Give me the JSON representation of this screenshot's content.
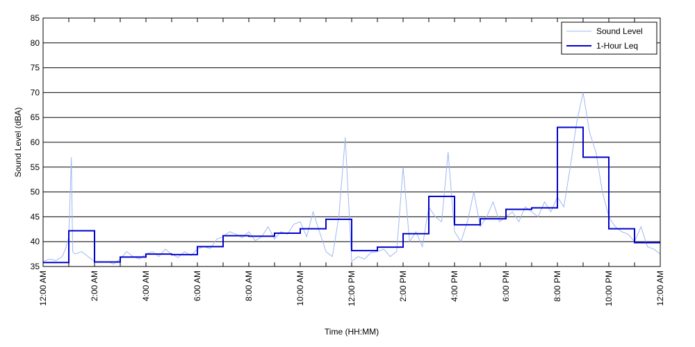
{
  "chart_data": {
    "type": "line",
    "title": "",
    "xlabel": "Time (HH:MM)",
    "ylabel": "Sound Level (dBA)",
    "xlim": [
      0,
      24
    ],
    "ylim": [
      35,
      85
    ],
    "yticks": [
      35,
      40,
      45,
      50,
      55,
      60,
      65,
      70,
      75,
      80,
      85
    ],
    "xticks": [
      {
        "hour": 0,
        "label": "12:00 AM"
      },
      {
        "hour": 2,
        "label": "2:00 AM"
      },
      {
        "hour": 4,
        "label": "4:00 AM"
      },
      {
        "hour": 6,
        "label": "6:00 AM"
      },
      {
        "hour": 8,
        "label": "8:00 AM"
      },
      {
        "hour": 10,
        "label": "10:00 AM"
      },
      {
        "hour": 12,
        "label": "12:00 PM"
      },
      {
        "hour": 14,
        "label": "2:00 PM"
      },
      {
        "hour": 16,
        "label": "4:00 PM"
      },
      {
        "hour": 18,
        "label": "6:00 PM"
      },
      {
        "hour": 20,
        "label": "8:00 PM"
      },
      {
        "hour": 22,
        "label": "10:00 PM"
      },
      {
        "hour": 24,
        "label": "12:00 AM"
      }
    ],
    "grid": "horizontal",
    "legend_position": "top-right",
    "series": [
      {
        "name": "Sound Level",
        "style": "line",
        "color": "#9db8f2",
        "x": [
          0,
          0.25,
          0.5,
          0.75,
          0.9,
          1.0,
          1.1,
          1.15,
          1.25,
          1.5,
          1.75,
          2.0,
          2.25,
          2.5,
          2.75,
          3.0,
          3.25,
          3.5,
          3.75,
          4.0,
          4.25,
          4.5,
          4.75,
          5.0,
          5.25,
          5.5,
          5.75,
          6.0,
          6.25,
          6.5,
          6.75,
          7.0,
          7.25,
          7.5,
          7.75,
          8.0,
          8.25,
          8.5,
          8.75,
          9.0,
          9.25,
          9.5,
          9.75,
          10.0,
          10.25,
          10.5,
          10.75,
          11.0,
          11.25,
          11.5,
          11.75,
          12.0,
          12.25,
          12.5,
          12.75,
          13.0,
          13.25,
          13.5,
          13.75,
          14.0,
          14.25,
          14.5,
          14.75,
          15.0,
          15.25,
          15.5,
          15.75,
          16.0,
          16.25,
          16.5,
          16.75,
          17.0,
          17.25,
          17.5,
          17.75,
          18.0,
          18.25,
          18.5,
          18.75,
          19.0,
          19.25,
          19.5,
          19.75,
          20.0,
          20.25,
          20.5,
          20.75,
          21.0,
          21.25,
          21.5,
          21.75,
          22.0,
          22.25,
          22.5,
          22.75,
          23.0,
          23.25,
          23.5,
          23.75,
          24.0
        ],
        "values": [
          36,
          36.5,
          36.2,
          37,
          39,
          41,
          57,
          38,
          37.5,
          38,
          37,
          36,
          35.8,
          36,
          35.5,
          36.5,
          38,
          37,
          36.5,
          37.5,
          38,
          37,
          38.5,
          37.5,
          36.8,
          38,
          37.2,
          38.5,
          39,
          38.6,
          40.5,
          41,
          42,
          41.5,
          40.8,
          42,
          40.2,
          41,
          43,
          40.5,
          42,
          41.5,
          43.5,
          44,
          41,
          46,
          42,
          38,
          37,
          45,
          61,
          36,
          37,
          36.5,
          37.8,
          38,
          38.5,
          37,
          38,
          55,
          40,
          42,
          39,
          47,
          45,
          44,
          58,
          42,
          40,
          44,
          50,
          43,
          45,
          48,
          44,
          45,
          46,
          44,
          47,
          46,
          45,
          48,
          46,
          49,
          47,
          55,
          64,
          70,
          62,
          58,
          50,
          45,
          43,
          42,
          41.5,
          40,
          43,
          39,
          38.5,
          37.5
        ]
      },
      {
        "name": "1-Hour Leq",
        "style": "step",
        "color": "#0000cc",
        "x": [
          0,
          1,
          2,
          3,
          4,
          5,
          6,
          7,
          8,
          9,
          10,
          11,
          12,
          13,
          14,
          15,
          16,
          17,
          18,
          19,
          20,
          21,
          22,
          23,
          24
        ],
        "values": [
          35.8,
          42.2,
          35.9,
          36.9,
          37.5,
          37.4,
          39,
          41.2,
          41.1,
          41.7,
          42.6,
          44.5,
          38.2,
          38.9,
          41.6,
          49.1,
          43.4,
          44.6,
          46.5,
          46.8,
          63,
          57,
          42.6,
          39.8,
          39.8
        ]
      }
    ]
  }
}
